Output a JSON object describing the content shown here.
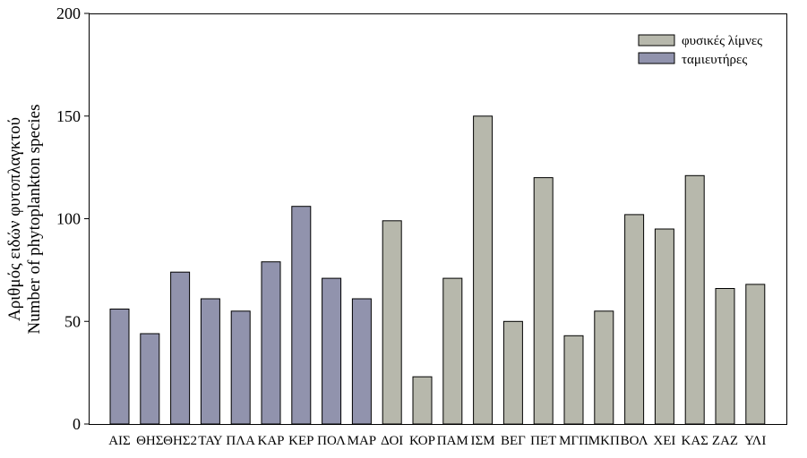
{
  "chart_data": {
    "type": "bar",
    "ylabel_line1": "Αριθμός ειδών φυτοπλαγκτού",
    "ylabel_line2": "Number of phytoplankton species",
    "ylim": [
      0,
      200
    ],
    "yticks": [
      0,
      50,
      100,
      150,
      200
    ],
    "grid": false,
    "legend_position": "top-right",
    "series": [
      {
        "name": "φυσικές λίμνες",
        "color": "#b7b8ac"
      },
      {
        "name": "ταμιευτήρες",
        "color": "#9193ad"
      }
    ],
    "bars": [
      {
        "category": "ΑΙΣ",
        "value": 56,
        "series": 1
      },
      {
        "category": "ΘΗΣ",
        "value": 44,
        "series": 1
      },
      {
        "category": "ΘΗΣ2",
        "value": 74,
        "series": 1
      },
      {
        "category": "ΤΑΥ",
        "value": 61,
        "series": 1
      },
      {
        "category": "ΠΛΑ",
        "value": 55,
        "series": 1
      },
      {
        "category": "ΚΑΡ",
        "value": 79,
        "series": 1
      },
      {
        "category": "ΚΕΡ",
        "value": 106,
        "series": 1
      },
      {
        "category": "ΠΟΛ",
        "value": 71,
        "series": 1
      },
      {
        "category": "ΜΑΡ",
        "value": 61,
        "series": 1
      },
      {
        "category": "ΔΟΙ",
        "value": 99,
        "series": 0
      },
      {
        "category": "ΚΟΡ",
        "value": 23,
        "series": 0
      },
      {
        "category": "ΠΑΜ",
        "value": 71,
        "series": 0
      },
      {
        "category": "ΙΣΜ",
        "value": 150,
        "series": 0
      },
      {
        "category": "ΒΕΓ",
        "value": 50,
        "series": 0
      },
      {
        "category": "ΠΕΤ",
        "value": 120,
        "series": 0
      },
      {
        "category": "ΜΓΠ",
        "value": 43,
        "series": 0
      },
      {
        "category": "ΜΚΠ",
        "value": 55,
        "series": 0
      },
      {
        "category": "ΒΟΛ",
        "value": 102,
        "series": 0
      },
      {
        "category": "ΧΕΙ",
        "value": 95,
        "series": 0
      },
      {
        "category": "ΚΑΣ",
        "value": 121,
        "series": 0
      },
      {
        "category": "ΖΑΖ",
        "value": 66,
        "series": 0
      },
      {
        "category": "ΥΛΙ",
        "value": 68,
        "series": 0
      }
    ]
  }
}
